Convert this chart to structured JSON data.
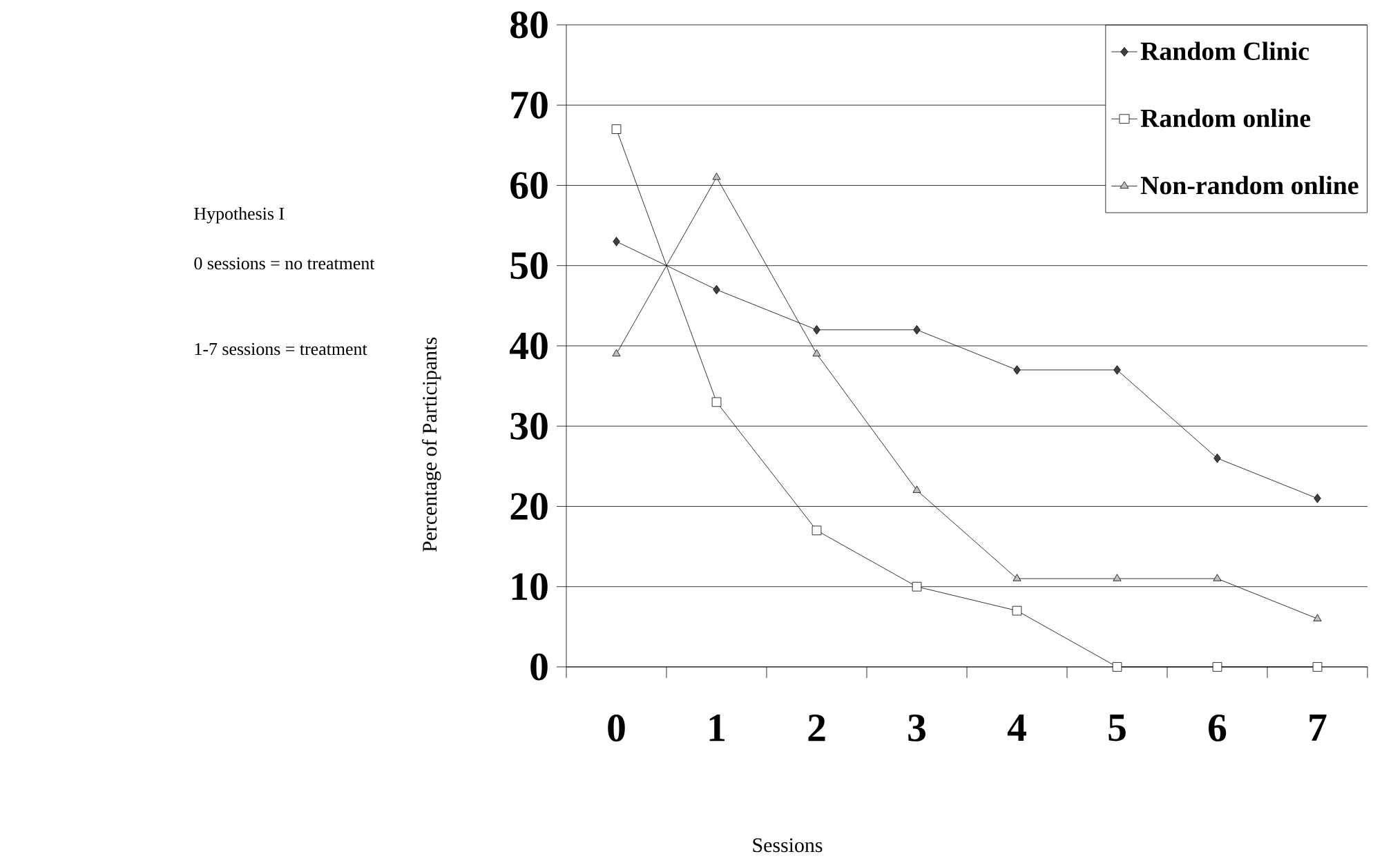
{
  "chart_data": {
    "type": "line",
    "xlabel": "Sessions",
    "ylabel": "Percentage of Participants",
    "annotations": [
      "Hypothesis I",
      "0 sessions = no treatment",
      "1-7 sessions = treatment"
    ],
    "categories": [
      "0",
      "1",
      "2",
      "3",
      "4",
      "5",
      "6",
      "7"
    ],
    "series": [
      {
        "name": "Random Clinic",
        "color": "#404040",
        "marker": "diamond",
        "values": [
          53,
          47,
          42,
          42,
          37,
          37,
          26,
          21
        ]
      },
      {
        "name": "Random online",
        "color": "#ffffff",
        "marker": "square",
        "values": [
          67,
          33,
          17,
          10,
          7,
          0,
          0,
          0
        ]
      },
      {
        "name": "Non-random online",
        "color": "#c0c0c0",
        "marker": "triangle",
        "values": [
          39,
          61,
          39,
          22,
          11,
          11,
          11,
          6
        ]
      }
    ],
    "ylim": [
      0,
      80
    ],
    "yticks": [
      0,
      10,
      20,
      30,
      40,
      50,
      60,
      70,
      80
    ],
    "grid": "y",
    "legend": "top right",
    "line_style": "solid"
  }
}
